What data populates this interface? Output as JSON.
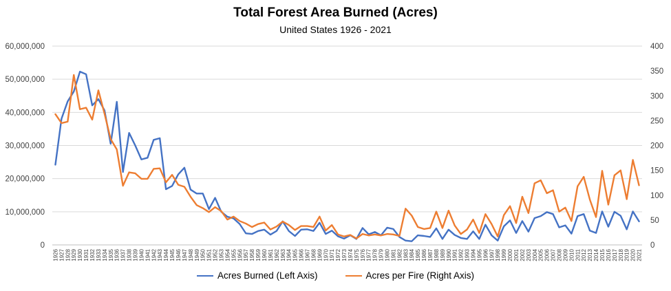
{
  "chart_data": {
    "type": "line",
    "title": "Total Forest Area Burned (Acres)",
    "subtitle": "United States 1926 - 2021",
    "xlabel": "",
    "ylabel": "",
    "y2label": "",
    "ylim": [
      0,
      60000000
    ],
    "y2lim": [
      0,
      400
    ],
    "yticks": [
      "0",
      "10,000,000",
      "20,000,000",
      "30,000,000",
      "40,000,000",
      "50,000,000",
      "60,000,000"
    ],
    "y2ticks": [
      "0",
      "50",
      "100",
      "150",
      "200",
      "250",
      "300",
      "350",
      "400"
    ],
    "grid": true,
    "legend_position": "bottom",
    "x": [
      1926,
      1927,
      1928,
      1929,
      1930,
      1931,
      1932,
      1933,
      1934,
      1935,
      1936,
      1937,
      1938,
      1939,
      1940,
      1941,
      1942,
      1943,
      1944,
      1945,
      1946,
      1947,
      1948,
      1949,
      1950,
      1951,
      1952,
      1953,
      1954,
      1955,
      1956,
      1957,
      1958,
      1959,
      1960,
      1961,
      1962,
      1963,
      1964,
      1965,
      1966,
      1967,
      1968,
      1969,
      1970,
      1971,
      1972,
      1973,
      1974,
      1975,
      1976,
      1977,
      1978,
      1979,
      1980,
      1981,
      1982,
      1983,
      1984,
      1985,
      1986,
      1987,
      1988,
      1989,
      1990,
      1991,
      1992,
      1993,
      1994,
      1995,
      1996,
      1997,
      1998,
      1999,
      2000,
      2001,
      2002,
      2003,
      2004,
      2005,
      2006,
      2007,
      2008,
      2009,
      2010,
      2011,
      2012,
      2013,
      2014,
      2015,
      2016,
      2017,
      2018,
      2019,
      2020,
      2021
    ],
    "series": [
      {
        "name": "Acres Burned (Left Axis)",
        "axis": "left",
        "color": "#4472C4",
        "values": [
          24200000,
          38100000,
          43300000,
          46300000,
          52300000,
          51500000,
          42100000,
          44000000,
          40600000,
          30500000,
          43200000,
          22000000,
          33800000,
          30000000,
          25800000,
          26300000,
          31700000,
          32200000,
          16800000,
          17800000,
          21300000,
          23300000,
          16700000,
          15500000,
          15500000,
          10800000,
          14200000,
          10000000,
          8500000,
          8000000,
          6300000,
          3500000,
          3300000,
          4200000,
          4600000,
          3100000,
          4200000,
          7100000,
          4200000,
          2700000,
          4600000,
          4700000,
          4200000,
          6700000,
          3300000,
          4300000,
          2600000,
          1900000,
          2900000,
          1800000,
          5100000,
          3200000,
          3900000,
          2900000,
          5200000,
          4800000,
          2400000,
          1300000,
          1100000,
          2900000,
          2700000,
          2400000,
          5000000,
          1800000,
          4600000,
          3000000,
          2100000,
          1800000,
          4100000,
          1800000,
          6100000,
          2900000,
          1300000,
          5600000,
          7400000,
          3600000,
          7200000,
          4000000,
          8100000,
          8700000,
          9900000,
          9300000,
          5300000,
          5900000,
          3400000,
          8700000,
          9300000,
          4300000,
          3600000,
          10100000,
          5500000,
          10000000,
          8800000,
          4700000,
          10100000,
          7100000
        ]
      },
      {
        "name": "Acres per Fire (Right Axis)",
        "axis": "right",
        "color": "#ED7D31",
        "values": [
          263,
          245,
          248,
          342,
          273,
          276,
          252,
          311,
          264,
          213,
          192,
          119,
          146,
          144,
          133,
          133,
          153,
          154,
          126,
          141,
          121,
          117,
          97,
          80,
          74,
          66,
          76,
          68,
          51,
          57,
          48,
          43,
          36,
          42,
          45,
          31,
          37,
          47,
          40,
          30,
          38,
          38,
          36,
          57,
          29,
          40,
          21,
          17,
          20,
          13,
          22,
          19,
          21,
          19,
          22,
          21,
          18,
          73,
          59,
          36,
          32,
          34,
          67,
          34,
          69,
          39,
          22,
          31,
          51,
          24,
          62,
          42,
          17,
          60,
          78,
          44,
          97,
          64,
          124,
          130,
          104,
          110,
          67,
          75,
          48,
          118,
          137,
          91,
          56,
          149,
          81,
          140,
          150,
          92,
          171,
          120
        ]
      }
    ]
  }
}
